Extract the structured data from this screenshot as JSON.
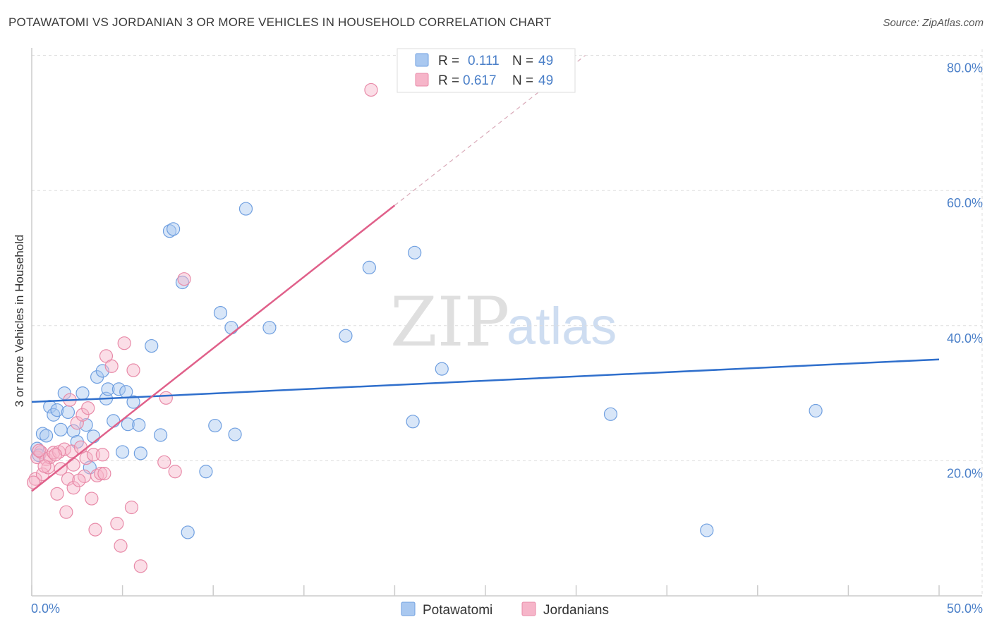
{
  "header": {
    "title": "POTAWATOMI VS JORDANIAN 3 OR MORE VEHICLES IN HOUSEHOLD CORRELATION CHART",
    "source": "Source: ZipAtlas.com"
  },
  "watermark": {
    "zip": "ZIP",
    "atlas": "atlas"
  },
  "colors": {
    "blue_fill": "#a9c8f0",
    "blue_stroke": "#6f9fe0",
    "blue_line": "#2f6fcc",
    "pink_fill": "#f6b5c9",
    "pink_stroke": "#e88aa8",
    "pink_line": "#e0608a",
    "tick_text": "#4a7fc8",
    "grid": "#dddddd"
  },
  "legend": {
    "rows": [
      {
        "r_label": "R =",
        "r_value": "0.111",
        "n_label": "N =",
        "n_value": "49",
        "series": "Potawatomi"
      },
      {
        "r_label": "R =",
        "r_value": "0.617",
        "n_label": "N =",
        "n_value": "49",
        "series": "Jordanians"
      }
    ]
  },
  "chart_data": {
    "type": "scatter",
    "title": "POTAWATOMI VS JORDANIAN 3 OR MORE VEHICLES IN HOUSEHOLD CORRELATION CHART",
    "xlabel": "",
    "ylabel": "3 or more Vehicles in Household",
    "xlim": [
      0,
      50
    ],
    "ylim": [
      0,
      80
    ],
    "x_tick_labels": [
      "0.0%",
      "50.0%"
    ],
    "y_ticks": [
      20,
      40,
      60,
      80
    ],
    "y_tick_labels": [
      "20.0%",
      "40.0%",
      "60.0%",
      "80.0%"
    ],
    "grid": true,
    "legend_position": "top-center",
    "bottom_legend": [
      "Potawatomi",
      "Jordanians"
    ],
    "series": [
      {
        "name": "Potawatomi",
        "color": "#a9c8f0",
        "trend": {
          "x": [
            0,
            50
          ],
          "y": [
            28.7,
            35.0
          ],
          "dashed_extension": false
        },
        "points": [
          [
            0.3,
            21.8
          ],
          [
            0.6,
            24.0
          ],
          [
            0.8,
            23.7
          ],
          [
            1.0,
            28.0
          ],
          [
            1.2,
            26.8
          ],
          [
            1.4,
            27.5
          ],
          [
            1.6,
            24.6
          ],
          [
            1.8,
            30.0
          ],
          [
            2.0,
            27.2
          ],
          [
            2.3,
            24.4
          ],
          [
            2.5,
            22.8
          ],
          [
            2.8,
            30.0
          ],
          [
            3.0,
            25.3
          ],
          [
            3.2,
            19.0
          ],
          [
            3.4,
            23.6
          ],
          [
            3.6,
            32.4
          ],
          [
            3.9,
            33.3
          ],
          [
            4.1,
            29.2
          ],
          [
            4.2,
            30.6
          ],
          [
            4.5,
            25.9
          ],
          [
            4.8,
            30.6
          ],
          [
            5.0,
            21.3
          ],
          [
            5.2,
            30.2
          ],
          [
            5.3,
            25.4
          ],
          [
            5.6,
            28.7
          ],
          [
            5.9,
            25.3
          ],
          [
            6.0,
            21.1
          ],
          [
            6.6,
            37.0
          ],
          [
            7.1,
            23.8
          ],
          [
            7.6,
            54.0
          ],
          [
            7.8,
            54.3
          ],
          [
            8.3,
            46.4
          ],
          [
            8.6,
            9.4
          ],
          [
            9.6,
            18.4
          ],
          [
            10.1,
            25.2
          ],
          [
            10.4,
            41.9
          ],
          [
            11.0,
            39.7
          ],
          [
            11.2,
            23.9
          ],
          [
            11.8,
            57.3
          ],
          [
            13.1,
            39.7
          ],
          [
            17.3,
            38.5
          ],
          [
            18.6,
            48.6
          ],
          [
            21.0,
            25.8
          ],
          [
            21.1,
            50.8
          ],
          [
            22.6,
            33.6
          ],
          [
            31.9,
            26.9
          ],
          [
            37.2,
            9.7
          ],
          [
            43.2,
            27.4
          ],
          [
            0.4,
            20.8
          ]
        ]
      },
      {
        "name": "Jordanians",
        "color": "#f6b5c9",
        "trend": {
          "x": [
            0,
            20.0
          ],
          "y": [
            15.5,
            57.8
          ],
          "dashed_extension": true,
          "dashed_to": [
            30.5,
            80.0
          ]
        },
        "points": [
          [
            0.2,
            17.3
          ],
          [
            0.3,
            20.5
          ],
          [
            0.5,
            21.3
          ],
          [
            0.6,
            18.0
          ],
          [
            0.8,
            20.2
          ],
          [
            0.9,
            19.0
          ],
          [
            1.0,
            20.5
          ],
          [
            1.2,
            21.2
          ],
          [
            1.4,
            15.1
          ],
          [
            1.5,
            21.3
          ],
          [
            1.6,
            18.8
          ],
          [
            1.8,
            21.7
          ],
          [
            1.9,
            12.4
          ],
          [
            2.0,
            17.3
          ],
          [
            2.1,
            29.0
          ],
          [
            2.2,
            21.4
          ],
          [
            2.3,
            19.4
          ],
          [
            2.3,
            16.0
          ],
          [
            2.5,
            25.6
          ],
          [
            2.7,
            22.0
          ],
          [
            2.8,
            26.8
          ],
          [
            2.9,
            17.7
          ],
          [
            3.0,
            20.4
          ],
          [
            3.1,
            27.8
          ],
          [
            3.3,
            14.4
          ],
          [
            3.4,
            20.9
          ],
          [
            3.5,
            9.8
          ],
          [
            3.6,
            17.8
          ],
          [
            3.8,
            18.1
          ],
          [
            3.9,
            20.9
          ],
          [
            4.0,
            18.1
          ],
          [
            4.1,
            35.5
          ],
          [
            4.4,
            34.0
          ],
          [
            4.7,
            10.7
          ],
          [
            4.9,
            7.4
          ],
          [
            5.1,
            37.4
          ],
          [
            5.5,
            13.1
          ],
          [
            5.6,
            33.4
          ],
          [
            6.0,
            4.4
          ],
          [
            7.3,
            19.8
          ],
          [
            7.4,
            29.3
          ],
          [
            7.9,
            18.4
          ],
          [
            8.4,
            46.9
          ],
          [
            18.7,
            74.9
          ],
          [
            0.1,
            16.8
          ],
          [
            0.7,
            19.2
          ],
          [
            1.3,
            20.9
          ],
          [
            2.6,
            17.1
          ],
          [
            0.4,
            21.5
          ]
        ]
      }
    ]
  }
}
